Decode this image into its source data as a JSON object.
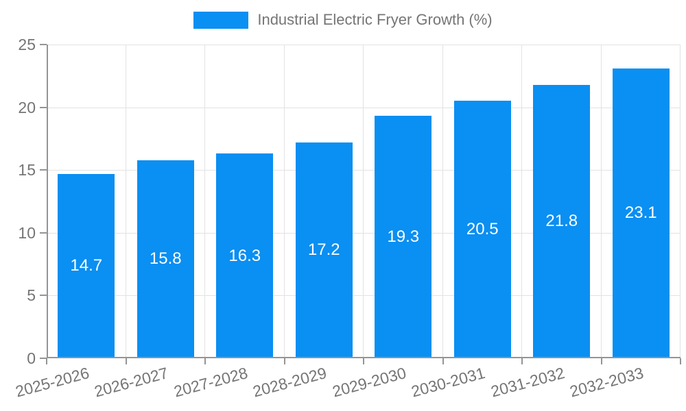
{
  "chart_data": {
    "type": "bar",
    "title": "Industrial Electric Fryer Growth (%)",
    "categories": [
      "2025-2026",
      "2026-2027",
      "2027-2028",
      "2028-2029",
      "2029-2030",
      "2030-2031",
      "2031-2032",
      "2032-2033"
    ],
    "values": [
      14.7,
      15.8,
      16.3,
      17.2,
      19.3,
      20.5,
      21.8,
      23.1
    ],
    "value_labels": [
      "14.7",
      "15.8",
      "16.3",
      "17.2",
      "19.3",
      "20.5",
      "21.8",
      "23.1"
    ],
    "ylim": [
      0,
      25
    ],
    "yticks": [
      0,
      5,
      10,
      15,
      20,
      25
    ],
    "grid": true,
    "legend_position": "top-center",
    "x_label_rotation_deg": -15,
    "colors": {
      "bar": "#0A8FF2",
      "value_label": "#ffffff",
      "axis_text": "#757575",
      "grid_line": "#e2e2e2",
      "axis_line": "#949494",
      "background": "#ffffff"
    }
  }
}
